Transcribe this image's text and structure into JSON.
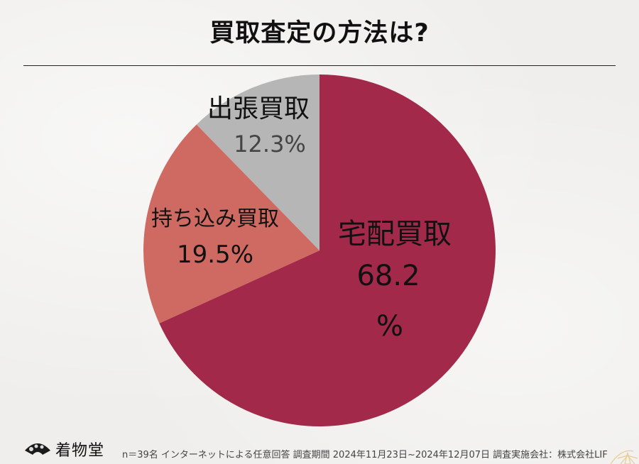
{
  "chart_data": {
    "type": "pie",
    "title": "買取査定の方法は?",
    "slices": [
      {
        "label": "宅配買取",
        "value": 68.2,
        "display": "68.2",
        "unit": "%",
        "color": "#a3294a"
      },
      {
        "label": "持ち込み買取",
        "value": 19.5,
        "display": "19.5%",
        "color": "#cf6a62"
      },
      {
        "label": "出張買取",
        "value": 12.3,
        "display": "12.3%",
        "color": "#b6b6b6"
      }
    ],
    "start_angle_deg": 0,
    "direction": "clockwise"
  },
  "footer": {
    "logo_text": "着物堂",
    "note": "n＝39名 インターネットによる任意回答 調査期間 2024年11月23日~2024年12月07日 調査実施会社：株式会社LIF"
  },
  "colors": {
    "background": "#efeeec",
    "title_text": "#111111",
    "label_dark": "#111111",
    "label_grey": "#444444"
  }
}
